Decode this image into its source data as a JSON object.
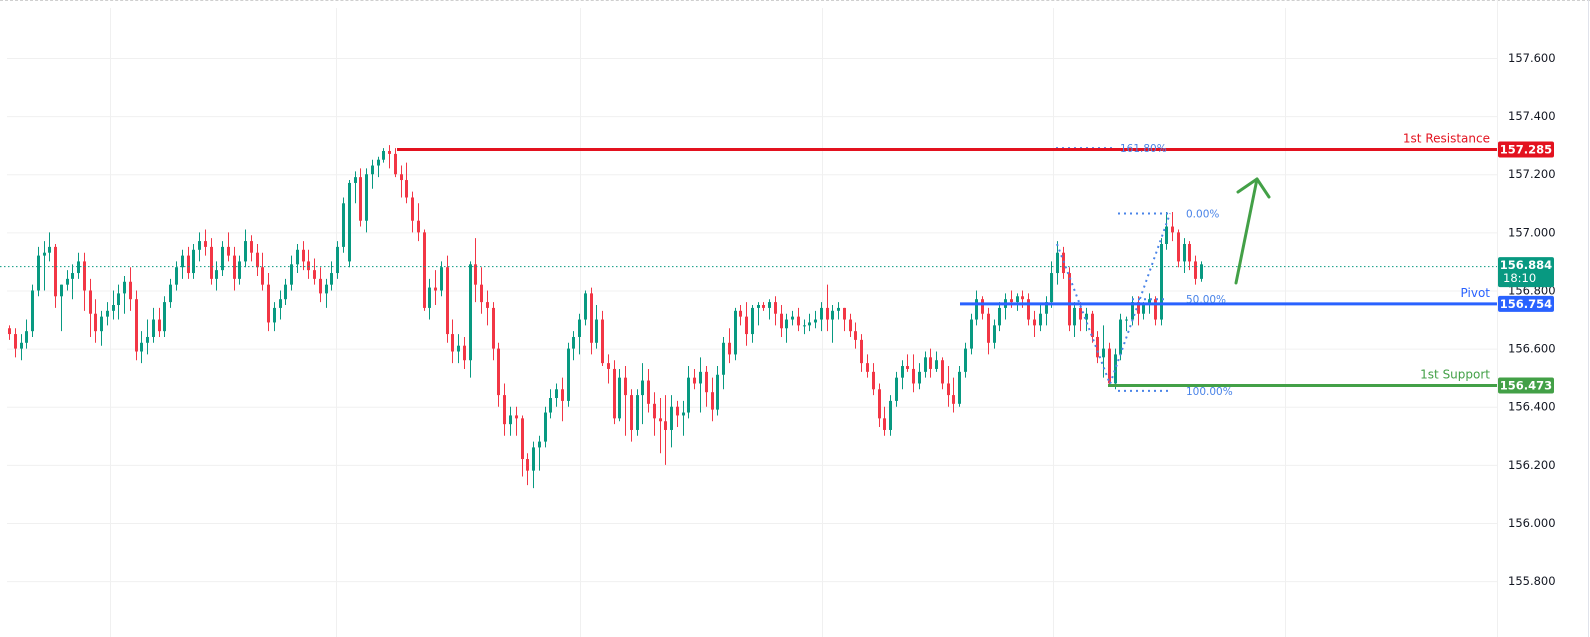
{
  "chart_data": {
    "type": "candlestick",
    "title": "",
    "xlabel": "",
    "ylabel": "",
    "ylim": [
      155.72,
      157.74
    ],
    "y_ticks": [
      "157.600",
      "157.400",
      "157.200",
      "157.000",
      "156.800",
      "156.600",
      "156.400",
      "156.200",
      "156.000",
      "155.800"
    ],
    "grid": true,
    "levels": [
      {
        "name": "1st Resistance",
        "price": "157.285",
        "value": 157.285,
        "color": "#e3121f",
        "x_start": 397
      },
      {
        "name": "Pivot",
        "price": "156.754",
        "value": 156.754,
        "color": "#2962ff",
        "x_start": 960
      },
      {
        "name": "1st Support",
        "price": "156.473",
        "value": 156.473,
        "color": "#43a047",
        "x_start": 1108
      }
    ],
    "current_price": {
      "price": "156.884",
      "value": 156.884,
      "countdown": "18:10",
      "color": "#089981"
    },
    "fibonacci": [
      {
        "label": "161.80%",
        "value": 157.29
      },
      {
        "label": "0.00%",
        "value": 157.065
      },
      {
        "label": "50.00%",
        "value": 156.77
      },
      {
        "label": "100.00%",
        "value": 156.465
      }
    ],
    "annotation": {
      "type": "arrow",
      "direction": "up",
      "color": "#43a047"
    },
    "candles": [
      [
        156.67,
        156.68,
        156.63,
        156.65
      ],
      [
        156.65,
        156.67,
        156.57,
        156.6
      ],
      [
        156.6,
        156.65,
        156.56,
        156.62
      ],
      [
        156.62,
        156.7,
        156.6,
        156.66
      ],
      [
        156.66,
        156.82,
        156.64,
        156.8
      ],
      [
        156.8,
        156.95,
        156.78,
        156.92
      ],
      [
        156.92,
        156.97,
        156.8,
        156.93
      ],
      [
        156.93,
        157.0,
        156.9,
        156.95
      ],
      [
        156.95,
        156.96,
        156.74,
        156.78
      ],
      [
        156.78,
        156.82,
        156.66,
        156.82
      ],
      [
        156.82,
        156.87,
        156.8,
        156.84
      ],
      [
        156.84,
        156.89,
        156.77,
        156.86
      ],
      [
        156.86,
        156.93,
        156.84,
        156.9
      ],
      [
        156.9,
        156.93,
        156.73,
        156.8
      ],
      [
        156.8,
        156.84,
        156.64,
        156.72
      ],
      [
        156.72,
        156.77,
        156.62,
        156.66
      ],
      [
        156.66,
        156.73,
        156.61,
        156.71
      ],
      [
        156.71,
        156.76,
        156.68,
        156.73
      ],
      [
        156.73,
        156.8,
        156.7,
        156.75
      ],
      [
        156.75,
        156.82,
        156.7,
        156.79
      ],
      [
        156.79,
        156.85,
        156.72,
        156.83
      ],
      [
        156.83,
        156.88,
        156.73,
        156.77
      ],
      [
        156.77,
        156.8,
        156.56,
        156.59
      ],
      [
        156.59,
        156.66,
        156.55,
        156.62
      ],
      [
        156.62,
        156.7,
        156.58,
        156.64
      ],
      [
        156.64,
        156.74,
        156.62,
        156.7
      ],
      [
        156.7,
        156.74,
        156.64,
        156.66
      ],
      [
        156.66,
        156.78,
        156.64,
        156.76
      ],
      [
        156.76,
        156.84,
        156.74,
        156.82
      ],
      [
        156.82,
        156.9,
        156.8,
        156.88
      ],
      [
        156.88,
        156.94,
        156.84,
        156.92
      ],
      [
        156.92,
        156.95,
        156.84,
        156.86
      ],
      [
        156.86,
        156.96,
        156.84,
        156.94
      ],
      [
        156.94,
        157.0,
        156.9,
        156.97
      ],
      [
        156.97,
        157.01,
        156.92,
        156.95
      ],
      [
        156.95,
        156.98,
        156.82,
        156.84
      ],
      [
        156.84,
        156.9,
        156.8,
        156.87
      ],
      [
        156.87,
        156.97,
        156.85,
        156.95
      ],
      [
        156.95,
        157.0,
        156.9,
        156.92
      ],
      [
        156.92,
        156.95,
        156.8,
        156.84
      ],
      [
        156.84,
        156.92,
        156.82,
        156.9
      ],
      [
        156.9,
        157.01,
        156.88,
        156.97
      ],
      [
        156.97,
        156.99,
        156.9,
        156.93
      ],
      [
        156.93,
        156.96,
        156.85,
        156.88
      ],
      [
        156.88,
        156.93,
        156.8,
        156.82
      ],
      [
        156.82,
        156.86,
        156.66,
        156.69
      ],
      [
        156.69,
        156.76,
        156.66,
        156.74
      ],
      [
        156.74,
        156.8,
        156.7,
        156.77
      ],
      [
        156.77,
        156.84,
        156.75,
        156.82
      ],
      [
        156.82,
        156.92,
        156.8,
        156.89
      ],
      [
        156.89,
        156.96,
        156.86,
        156.94
      ],
      [
        156.94,
        156.97,
        156.87,
        156.9
      ],
      [
        156.9,
        156.94,
        156.84,
        156.87
      ],
      [
        156.87,
        156.91,
        156.82,
        156.84
      ],
      [
        156.84,
        156.88,
        156.76,
        156.79
      ],
      [
        156.79,
        156.84,
        156.74,
        156.82
      ],
      [
        156.82,
        156.9,
        156.8,
        156.86
      ],
      [
        156.86,
        156.97,
        156.84,
        156.95
      ],
      [
        156.95,
        157.12,
        156.93,
        157.1
      ],
      [
        156.9,
        157.18,
        156.88,
        157.17
      ],
      [
        157.17,
        157.21,
        157.1,
        157.19
      ],
      [
        157.19,
        157.22,
        157.02,
        157.04
      ],
      [
        157.04,
        157.22,
        157.0,
        157.2
      ],
      [
        157.2,
        157.25,
        157.15,
        157.23
      ],
      [
        157.23,
        157.26,
        157.19,
        157.25
      ],
      [
        157.25,
        157.29,
        157.24,
        157.28
      ],
      [
        157.28,
        157.3,
        157.22,
        157.27
      ],
      [
        157.27,
        157.29,
        157.19,
        157.2
      ],
      [
        157.2,
        157.23,
        157.12,
        157.18
      ],
      [
        157.18,
        157.24,
        157.1,
        157.12
      ],
      [
        157.12,
        157.14,
        157.0,
        157.04
      ],
      [
        157.04,
        157.1,
        156.97,
        157.0
      ],
      [
        157.0,
        157.01,
        156.73,
        156.74
      ],
      [
        156.74,
        156.84,
        156.7,
        156.81
      ],
      [
        156.81,
        156.87,
        156.75,
        156.8
      ],
      [
        156.8,
        156.9,
        156.78,
        156.88
      ],
      [
        156.88,
        156.92,
        156.62,
        156.65
      ],
      [
        156.65,
        156.7,
        156.55,
        156.59
      ],
      [
        156.59,
        156.65,
        156.55,
        156.61
      ],
      [
        156.61,
        156.64,
        156.53,
        156.56
      ],
      [
        156.56,
        156.9,
        156.5,
        156.89
      ],
      [
        156.89,
        156.98,
        156.76,
        156.82
      ],
      [
        156.82,
        156.88,
        156.72,
        156.76
      ],
      [
        156.76,
        156.8,
        156.68,
        156.74
      ],
      [
        156.74,
        156.76,
        156.56,
        156.6
      ],
      [
        156.6,
        156.62,
        156.4,
        156.44
      ],
      [
        156.44,
        156.48,
        156.3,
        156.34
      ],
      [
        156.34,
        156.4,
        156.3,
        156.37
      ],
      [
        156.37,
        156.4,
        156.3,
        156.36
      ],
      [
        156.36,
        156.37,
        156.16,
        156.22
      ],
      [
        156.22,
        156.24,
        156.13,
        156.18
      ],
      [
        156.18,
        156.28,
        156.12,
        156.26
      ],
      [
        156.26,
        156.3,
        156.18,
        156.28
      ],
      [
        156.28,
        156.4,
        156.26,
        156.38
      ],
      [
        156.38,
        156.46,
        156.36,
        156.43
      ],
      [
        156.43,
        156.48,
        156.4,
        156.46
      ],
      [
        156.46,
        156.5,
        156.35,
        156.42
      ],
      [
        156.42,
        156.62,
        156.4,
        156.6
      ],
      [
        156.6,
        156.66,
        156.56,
        156.64
      ],
      [
        156.64,
        156.72,
        156.58,
        156.7
      ],
      [
        156.7,
        156.8,
        156.68,
        156.79
      ],
      [
        156.79,
        156.81,
        156.58,
        156.62
      ],
      [
        156.62,
        156.75,
        156.6,
        156.7
      ],
      [
        156.7,
        156.73,
        156.54,
        156.55
      ],
      [
        156.55,
        156.58,
        156.48,
        156.53
      ],
      [
        156.53,
        156.56,
        156.34,
        156.36
      ],
      [
        156.36,
        156.53,
        156.35,
        156.5
      ],
      [
        156.5,
        156.54,
        156.3,
        156.44
      ],
      [
        156.44,
        156.46,
        156.28,
        156.32
      ],
      [
        156.32,
        156.46,
        156.3,
        156.44
      ],
      [
        156.44,
        156.55,
        156.34,
        156.49
      ],
      [
        156.49,
        156.53,
        156.38,
        156.41
      ],
      [
        156.41,
        156.45,
        156.3,
        156.36
      ],
      [
        156.36,
        156.43,
        156.24,
        156.35
      ],
      [
        156.35,
        156.44,
        156.2,
        156.32
      ],
      [
        156.32,
        156.44,
        156.26,
        156.4
      ],
      [
        156.4,
        156.42,
        156.33,
        156.37
      ],
      [
        156.37,
        156.42,
        156.3,
        156.38
      ],
      [
        156.38,
        156.54,
        156.36,
        156.5
      ],
      [
        156.5,
        156.53,
        156.46,
        156.48
      ],
      [
        156.48,
        156.57,
        156.38,
        156.52
      ],
      [
        156.52,
        156.54,
        156.4,
        156.45
      ],
      [
        156.45,
        156.5,
        156.35,
        156.39
      ],
      [
        156.39,
        156.54,
        156.37,
        156.51
      ],
      [
        156.51,
        156.64,
        156.46,
        156.62
      ],
      [
        156.62,
        156.67,
        156.55,
        156.58
      ],
      [
        156.58,
        156.74,
        156.56,
        156.73
      ],
      [
        156.73,
        156.75,
        156.68,
        156.71
      ],
      [
        156.71,
        156.76,
        156.61,
        156.65
      ],
      [
        156.65,
        156.75,
        156.62,
        156.74
      ],
      [
        156.74,
        156.76,
        156.68,
        156.75
      ],
      [
        156.75,
        156.76,
        156.73,
        156.74
      ],
      [
        156.74,
        156.77,
        156.7,
        156.76
      ],
      [
        156.76,
        156.78,
        156.68,
        156.72
      ],
      [
        156.72,
        156.75,
        156.64,
        156.67
      ],
      [
        156.67,
        156.72,
        156.62,
        156.7
      ],
      [
        156.7,
        156.73,
        156.68,
        156.71
      ],
      [
        156.71,
        156.74,
        156.66,
        156.68
      ],
      [
        156.68,
        156.7,
        156.65,
        156.68
      ],
      [
        156.68,
        156.72,
        156.66,
        156.69
      ],
      [
        156.69,
        156.73,
        156.67,
        156.7
      ],
      [
        156.7,
        156.76,
        156.66,
        156.74
      ],
      [
        156.74,
        156.82,
        156.66,
        156.7
      ],
      [
        156.7,
        156.75,
        156.62,
        156.73
      ],
      [
        156.73,
        156.76,
        156.7,
        156.74
      ],
      [
        156.74,
        156.74,
        156.66,
        156.7
      ],
      [
        156.7,
        156.72,
        156.64,
        156.66
      ],
      [
        156.66,
        156.69,
        156.6,
        156.63
      ],
      [
        156.63,
        156.65,
        156.52,
        156.55
      ],
      [
        156.55,
        156.58,
        156.5,
        156.52
      ],
      [
        156.52,
        156.55,
        156.44,
        156.46
      ],
      [
        156.46,
        156.48,
        156.33,
        156.36
      ],
      [
        156.36,
        156.4,
        156.3,
        156.32
      ],
      [
        156.32,
        156.44,
        156.3,
        156.42
      ],
      [
        156.42,
        156.52,
        156.4,
        156.5
      ],
      [
        156.5,
        156.56,
        156.46,
        156.54
      ],
      [
        156.54,
        156.58,
        156.52,
        156.53
      ],
      [
        156.53,
        156.58,
        156.45,
        156.48
      ],
      [
        156.48,
        156.55,
        156.46,
        156.52
      ],
      [
        156.52,
        156.59,
        156.5,
        156.57
      ],
      [
        156.57,
        156.6,
        156.5,
        156.53
      ],
      [
        156.53,
        156.59,
        156.52,
        156.56
      ],
      [
        156.56,
        156.57,
        156.46,
        156.48
      ],
      [
        156.48,
        156.54,
        156.4,
        156.44
      ],
      [
        156.44,
        156.5,
        156.38,
        156.41
      ],
      [
        156.41,
        156.54,
        156.4,
        156.52
      ],
      [
        156.52,
        156.62,
        156.5,
        156.6
      ],
      [
        156.6,
        156.72,
        156.58,
        156.7
      ],
      [
        156.7,
        156.8,
        156.68,
        156.77
      ],
      [
        156.77,
        156.78,
        156.7,
        156.72
      ],
      [
        156.72,
        156.74,
        156.58,
        156.62
      ],
      [
        156.62,
        156.7,
        156.6,
        156.68
      ],
      [
        156.68,
        156.76,
        156.66,
        156.74
      ],
      [
        156.74,
        156.79,
        156.7,
        156.77
      ],
      [
        156.77,
        156.8,
        156.74,
        156.76
      ],
      [
        156.76,
        156.79,
        156.73,
        156.78
      ],
      [
        156.78,
        156.8,
        156.74,
        156.77
      ],
      [
        156.77,
        156.79,
        156.68,
        156.7
      ],
      [
        156.7,
        156.73,
        156.64,
        156.68
      ],
      [
        156.68,
        156.75,
        156.66,
        156.72
      ],
      [
        156.72,
        156.78,
        156.68,
        156.76
      ],
      [
        156.76,
        156.9,
        156.74,
        156.86
      ],
      [
        156.86,
        156.97,
        156.82,
        156.93
      ],
      [
        156.93,
        156.95,
        156.84,
        156.86
      ],
      [
        156.86,
        156.88,
        156.66,
        156.68
      ],
      [
        156.68,
        156.76,
        156.64,
        156.74
      ],
      [
        156.74,
        156.76,
        156.66,
        156.7
      ],
      [
        156.7,
        156.74,
        156.66,
        156.72
      ],
      [
        156.72,
        156.73,
        156.62,
        156.64
      ],
      [
        156.64,
        156.66,
        156.55,
        156.57
      ],
      [
        156.57,
        156.68,
        156.5,
        156.6
      ],
      [
        156.6,
        156.62,
        156.47,
        156.48
      ],
      [
        156.48,
        156.6,
        156.46,
        156.58
      ],
      [
        156.58,
        156.72,
        156.56,
        156.7
      ],
      [
        156.7,
        156.71,
        156.66,
        156.7
      ],
      [
        156.7,
        156.78,
        156.68,
        156.76
      ],
      [
        156.76,
        156.78,
        156.68,
        156.72
      ],
      [
        156.72,
        156.76,
        156.7,
        156.75
      ],
      [
        156.75,
        156.79,
        156.72,
        156.77
      ],
      [
        156.77,
        156.78,
        156.68,
        156.7
      ],
      [
        156.7,
        156.98,
        156.68,
        156.96
      ],
      [
        156.96,
        157.07,
        156.94,
        157.02
      ],
      [
        157.02,
        157.07,
        156.97,
        157.0
      ],
      [
        157.0,
        157.01,
        156.88,
        156.9
      ],
      [
        156.9,
        156.98,
        156.86,
        156.96
      ],
      [
        156.96,
        156.97,
        156.87,
        156.9
      ],
      [
        156.9,
        156.92,
        156.82,
        156.84
      ],
      [
        156.84,
        156.9,
        156.83,
        156.89
      ]
    ]
  },
  "price_axis": {
    "ticks": [
      "157.600",
      "157.400",
      "157.200",
      "157.000",
      "156.800",
      "156.600",
      "156.400",
      "156.200",
      "156.000",
      "155.800"
    ]
  },
  "labels": {
    "resistance": "1st Resistance",
    "pivot": "Pivot",
    "support": "1st Support",
    "resistance_price": "157.285",
    "pivot_price": "156.754",
    "support_price": "156.473",
    "current_price": "156.884",
    "countdown": "18:10",
    "fib_1618": "161.80%",
    "fib_0": "0.00%",
    "fib_50": "50.00%",
    "fib_100": "100.00%"
  },
  "colors": {
    "up": "#089981",
    "down": "#f23645",
    "resistance": "#e3121f",
    "pivot": "#2962ff",
    "support": "#43a047",
    "fib": "#4a84e8",
    "grid": "#f0f0f0"
  }
}
